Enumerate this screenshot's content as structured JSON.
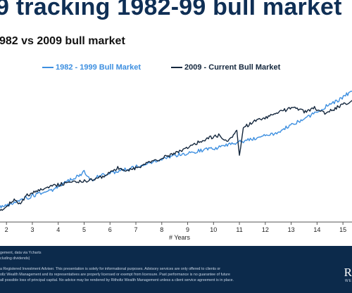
{
  "header": {
    "title": "9 tracking 1982-99 bull market",
    "subtitle": "982 vs 2009 bull market"
  },
  "legend": {
    "series_a": "1982 - 1999 Bull Market",
    "series_b": "2009 - Current Bull Market"
  },
  "colors": {
    "series_a": "#3d8fe0",
    "series_b": "#14273d",
    "title": "#0f2f55",
    "footer_bg": "#0c2a4b"
  },
  "chart_data": {
    "type": "line",
    "title": "",
    "xlabel": "# Years",
    "ylabel": "",
    "xlim": [
      1.75,
      15.35
    ],
    "x_ticks": [
      "2",
      "3",
      "4",
      "5",
      "6",
      "7",
      "8",
      "9",
      "10",
      "11",
      "12",
      "13",
      "14",
      "15"
    ],
    "grid": false,
    "legend_position": "top",
    "y_ticks_visible": false,
    "series": [
      {
        "name": "1982 - 1999 Bull Market",
        "color": "#3d8fe0",
        "points": [
          [
            1.75,
            0.11
          ],
          [
            2.0,
            0.12
          ],
          [
            2.4,
            0.15
          ],
          [
            2.8,
            0.18
          ],
          [
            3.2,
            0.21
          ],
          [
            3.6,
            0.23
          ],
          [
            4.0,
            0.26
          ],
          [
            4.3,
            0.3
          ],
          [
            4.6,
            0.33
          ],
          [
            4.8,
            0.35
          ],
          [
            5.0,
            0.38
          ],
          [
            5.1,
            0.34
          ],
          [
            5.3,
            0.32
          ],
          [
            5.6,
            0.35
          ],
          [
            6.0,
            0.37
          ],
          [
            6.4,
            0.39
          ],
          [
            6.8,
            0.41
          ],
          [
            7.2,
            0.43
          ],
          [
            7.6,
            0.45
          ],
          [
            8.0,
            0.48
          ],
          [
            8.4,
            0.5
          ],
          [
            8.8,
            0.52
          ],
          [
            9.2,
            0.53
          ],
          [
            9.6,
            0.55
          ],
          [
            10.0,
            0.56
          ],
          [
            10.4,
            0.58
          ],
          [
            10.8,
            0.6
          ],
          [
            11.2,
            0.62
          ],
          [
            11.6,
            0.64
          ],
          [
            12.0,
            0.66
          ],
          [
            12.4,
            0.68
          ],
          [
            12.8,
            0.72
          ],
          [
            13.2,
            0.76
          ],
          [
            13.6,
            0.8
          ],
          [
            14.0,
            0.84
          ],
          [
            14.4,
            0.89
          ],
          [
            14.8,
            0.93
          ],
          [
            15.1,
            0.97
          ],
          [
            15.35,
            1.0
          ]
        ]
      },
      {
        "name": "2009 - Current Bull Market",
        "color": "#14273d",
        "points": [
          [
            1.75,
            0.09
          ],
          [
            2.0,
            0.11
          ],
          [
            2.3,
            0.17
          ],
          [
            2.5,
            0.13
          ],
          [
            2.8,
            0.2
          ],
          [
            3.1,
            0.23
          ],
          [
            3.5,
            0.26
          ],
          [
            3.9,
            0.28
          ],
          [
            4.3,
            0.29
          ],
          [
            4.7,
            0.3
          ],
          [
            5.1,
            0.31
          ],
          [
            5.5,
            0.33
          ],
          [
            5.9,
            0.36
          ],
          [
            6.3,
            0.41
          ],
          [
            6.6,
            0.38
          ],
          [
            7.0,
            0.41
          ],
          [
            7.4,
            0.44
          ],
          [
            7.8,
            0.47
          ],
          [
            8.2,
            0.5
          ],
          [
            8.6,
            0.53
          ],
          [
            9.0,
            0.57
          ],
          [
            9.4,
            0.61
          ],
          [
            9.8,
            0.64
          ],
          [
            10.2,
            0.66
          ],
          [
            10.6,
            0.62
          ],
          [
            10.9,
            0.7
          ],
          [
            11.0,
            0.5
          ],
          [
            11.15,
            0.72
          ],
          [
            11.5,
            0.76
          ],
          [
            11.9,
            0.79
          ],
          [
            12.3,
            0.82
          ],
          [
            12.7,
            0.85
          ],
          [
            13.1,
            0.88
          ],
          [
            13.5,
            0.84
          ],
          [
            13.9,
            0.87
          ],
          [
            14.3,
            0.83
          ],
          [
            14.7,
            0.87
          ],
          [
            15.0,
            0.9
          ],
          [
            15.35,
            0.93
          ]
        ]
      }
    ]
  },
  "footer": {
    "lines": [
      "gement, data via Ycharts",
      "cluding dividends)",
      "a Registered Investment Adviser. This presentation is solely for informational purposes. Advisory services are only offered to clients or",
      "ollz Wealth Management and its representatives are properly licensed or exempt from licensure. Past performance is no guarantee of future",
      "all possible loss of principal capital. No advice may be rendered by Ritholtz Wealth Management unless a client service agreement is in place."
    ],
    "logo": "R",
    "logo_sub": "WE"
  }
}
